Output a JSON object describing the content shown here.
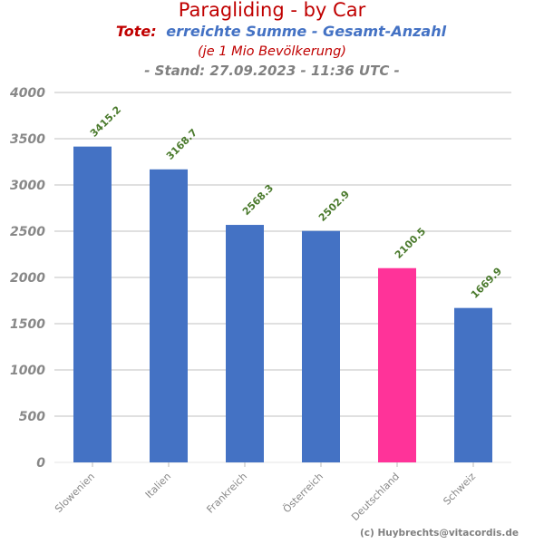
{
  "header": {
    "title": "Paragliding - by Car",
    "subtitle_label": "Tote:",
    "subtitle_text": "erreichte Summe - Gesamt-Anzahl",
    "note": "(je 1 Mio Bevölkerung)",
    "stand": "- Stand: 27.09.2023 - 11:36 UTC -"
  },
  "credit": "(c) Huybrechts@vitacordis.de",
  "colors": {
    "title": "#c00000",
    "accent_blue": "#4472c4",
    "bar": "#4472c4",
    "highlight": "#ff3399",
    "value_label": "#4a7a2c",
    "axis_text": "#888888",
    "grid": "#d6d6d6"
  },
  "chart_data": {
    "type": "bar",
    "categories": [
      "Slowenien",
      "Italien",
      "Frankreich",
      "Österreich",
      "Deutschland",
      "Schweiz"
    ],
    "values": [
      3415.2,
      3168.7,
      2568.3,
      2502.9,
      2100.5,
      1669.9
    ],
    "value_labels": [
      "3415.2",
      "3168.7",
      "2568.3",
      "2502.9",
      "2100.5",
      "1669.9"
    ],
    "highlight_category": "Deutschland",
    "ylim": [
      0,
      4000
    ],
    "yticks": [
      0,
      500,
      1000,
      1500,
      2000,
      2500,
      3000,
      3500,
      4000
    ],
    "grid": true,
    "legend": "none",
    "xlabel": "",
    "ylabel": ""
  }
}
